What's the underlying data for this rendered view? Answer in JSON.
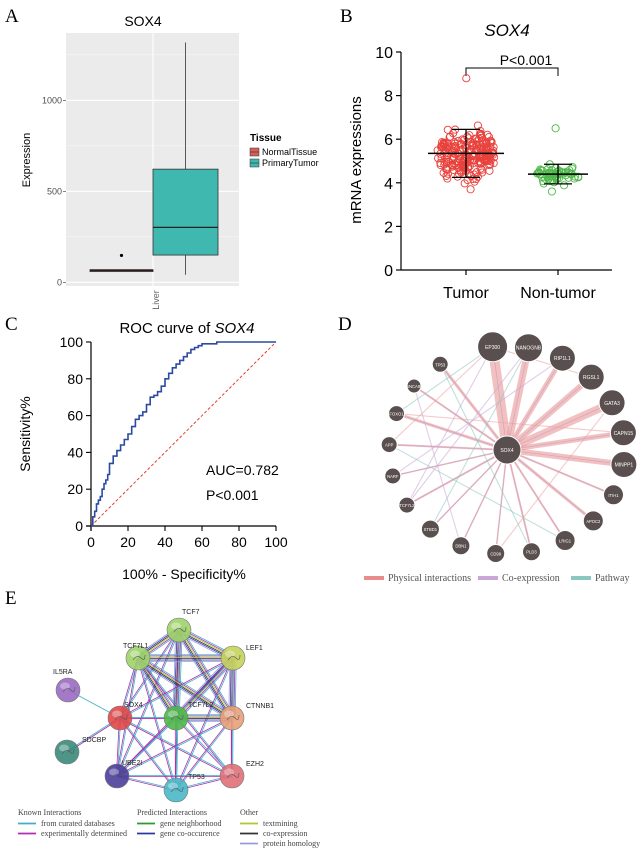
{
  "panels": {
    "a": {
      "letter": "A",
      "chart_data": {
        "type": "box",
        "title": "SOX4",
        "ylabel": "Expression",
        "xlabel": "",
        "x_tick": "Liver",
        "ylim": [
          -20,
          1370
        ],
        "yticks": [
          0,
          500,
          1000
        ],
        "legend_title": "Tissue",
        "series": [
          {
            "name": "NormalTissue",
            "color": "#d4605a",
            "q1": 62,
            "median": 66,
            "q3": 70,
            "whisker_low": 62,
            "whisker_high": 70,
            "outliers": [
              148
            ]
          },
          {
            "name": "PrimaryTumor",
            "color": "#3fb8b0",
            "q1": 150,
            "median": 302,
            "q3": 622,
            "whisker_low": 42,
            "whisker_high": 1318,
            "outliers": []
          }
        ]
      }
    },
    "b": {
      "letter": "B",
      "chart_data": {
        "type": "scatter",
        "title": "SOX4",
        "ylabel": "mRNA expressions",
        "ylim": [
          0,
          10
        ],
        "yticks": [
          0,
          2,
          4,
          6,
          8,
          10
        ],
        "annotation": "P<0.001",
        "groups": [
          {
            "name": "Tumor",
            "color": "#e8413c",
            "mean": 5.35,
            "sd_low": 4.25,
            "sd_high": 6.45,
            "min": 3.7,
            "max": 8.8,
            "n": 220
          },
          {
            "name": "Non-tumor",
            "color": "#4cb848",
            "mean": 4.4,
            "sd_low": 3.95,
            "sd_high": 4.85,
            "min": 3.6,
            "max": 6.5,
            "n": 60
          }
        ]
      }
    },
    "c": {
      "letter": "C",
      "chart_data": {
        "type": "line",
        "title_prefix": "ROC curve of ",
        "title_gene": "SOX4",
        "xlabel": "100% - Specificity%",
        "ylabel": "Sensitivity%",
        "xlim": [
          0,
          100
        ],
        "ylim": [
          0,
          100
        ],
        "ticks": [
          0,
          20,
          40,
          60,
          80,
          100
        ],
        "auc_text": "AUC=0.782",
        "p_text": "P<0.001",
        "series": [
          {
            "name": "ROC",
            "x": [
              0,
              1,
              2,
              3,
              4,
              5,
              6,
              7,
              8,
              9,
              10,
              12,
              14,
              16,
              18,
              20,
              22,
              24,
              26,
              28,
              30,
              32,
              34,
              36,
              38,
              40,
              42,
              44,
              46,
              48,
              50,
              52,
              54,
              56,
              58,
              60,
              64,
              68,
              75,
              85,
              100
            ],
            "y": [
              0,
              5,
              8,
              12,
              14,
              16,
              20,
              23,
              25,
              28,
              34,
              38,
              41,
              44,
              47,
              50,
              54,
              58,
              60,
              62,
              66,
              70,
              71,
              73,
              76,
              80,
              83,
              86,
              88,
              90,
              92,
              94,
              96,
              97,
              98,
              99,
              99,
              100,
              100,
              100,
              100
            ]
          }
        ]
      }
    },
    "d": {
      "letter": "D",
      "center": "SOX4",
      "nodes": [
        "EP300",
        "NANOGNB",
        "RIP1L1",
        "RGSL1",
        "GATA3",
        "CAPN15",
        "MINPP1",
        "ITIH1",
        "APOC2",
        "LRIG1",
        "PLD3",
        "CD99",
        "DBN1",
        "STBD1",
        "TCF7L2",
        "NARF",
        "APP",
        "FOXO1",
        "SNCAIP",
        "TP53"
      ],
      "legend": [
        {
          "label": "Physical interactions",
          "color": "#e98c8c"
        },
        {
          "label": "Co-expression",
          "color": "#c8a6d6"
        },
        {
          "label": "Pathway",
          "color": "#8cc6c0"
        }
      ]
    },
    "e": {
      "letter": "E",
      "nodes": [
        {
          "name": "TCF7",
          "color": "#9fd36a"
        },
        {
          "name": "TCF7L1",
          "color": "#9fd36a"
        },
        {
          "name": "LEF1",
          "color": "#c7d35a"
        },
        {
          "name": "IL5RA",
          "color": "#9a6ac2"
        },
        {
          "name": "SOX4",
          "color": "#e04848"
        },
        {
          "name": "TCF7L2",
          "color": "#4fb84a"
        },
        {
          "name": "CTNNB1",
          "color": "#e8a07a"
        },
        {
          "name": "SDCBP",
          "color": "#3a8a7a"
        },
        {
          "name": "UBE2I",
          "color": "#4a3e9a"
        },
        {
          "name": "TP53",
          "color": "#4ab8c8"
        },
        {
          "name": "EZH2",
          "color": "#e07078"
        }
      ],
      "legend": {
        "known_title": "Known Interactions",
        "known": [
          {
            "label": "from curated databases",
            "color": "#3fb0c8"
          },
          {
            "label": "experimentally determined",
            "color": "#b02cb0"
          }
        ],
        "predicted_title": "Predicted Interactions",
        "predicted": [
          {
            "label": "gene neighborhood",
            "color": "#2c9a2c"
          },
          {
            "label": "gene co-occurence",
            "color": "#2c3aa0"
          }
        ],
        "other_title": "Other",
        "other": [
          {
            "label": "textmining",
            "color": "#b0c830"
          },
          {
            "label": "co-expression",
            "color": "#333333"
          },
          {
            "label": "protein homology",
            "color": "#9a9ae0"
          }
        ]
      }
    }
  }
}
